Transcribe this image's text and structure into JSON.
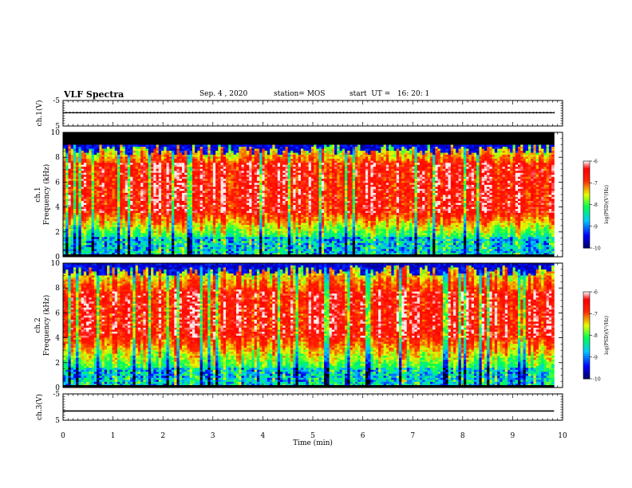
{
  "header": {
    "title": "VLF Spectra",
    "date": "Sep. 4 , 2020",
    "station": "station= MOS",
    "start": "start  UT =   16: 20: 1"
  },
  "chart_data": [
    {
      "type": "line",
      "panel": "ch1-voltage",
      "ylabel": "ch.1(V)",
      "ylim": [
        -5,
        5
      ],
      "yticks": [
        "5",
        "-5"
      ],
      "xlim": [
        0,
        10
      ],
      "series": [
        {
          "x": [
            0,
            9.83
          ],
          "y": [
            0.2,
            0.2
          ]
        }
      ],
      "color": "#000000"
    },
    {
      "type": "heatmap",
      "panel": "ch1-spectrogram",
      "ylabel": "ch.1\nFrequency (kHz)",
      "ylim": [
        0,
        10
      ],
      "yticks": [
        "0",
        "2",
        "4",
        "6",
        "8",
        "10"
      ],
      "xlim": [
        0,
        10
      ],
      "data_xmax": 9.83,
      "colorbar": {
        "label": "log(PSD)(V²/Hz)",
        "range": [
          -10,
          -6
        ],
        "ticks": [
          "-6",
          "-7",
          "-8",
          "-9",
          "-10"
        ]
      },
      "profile": {
        "black_above_khz": 9.0,
        "peak_band_khz": [
          3.5,
          7.5
        ],
        "cutoff_khz": 8.6
      }
    },
    {
      "type": "heatmap",
      "panel": "ch2-spectrogram",
      "ylabel": "ch.2\nFrequency (kHz)",
      "ylim": [
        0,
        10
      ],
      "yticks": [
        "0",
        "2",
        "4",
        "6",
        "8",
        "10"
      ],
      "xlim": [
        0,
        10
      ],
      "data_xmax": 9.83,
      "colorbar": {
        "label": "log(PSD)(V²/Hz)",
        "range": [
          -10,
          -6
        ],
        "ticks": [
          "-6",
          "-7",
          "-8",
          "-9",
          "-10"
        ]
      },
      "profile": {
        "black_above_khz": 10.0,
        "peak_band_khz": [
          4.0,
          7.8
        ],
        "cutoff_khz": 9.4
      }
    },
    {
      "type": "line",
      "panel": "ch3-voltage",
      "ylabel": "ch.3(V)",
      "ylim": [
        -5,
        5
      ],
      "yticks": [
        "5",
        "-5"
      ],
      "xlim": [
        0,
        10
      ],
      "xticks": [
        "0",
        "1",
        "2",
        "3",
        "4",
        "5",
        "6",
        "7",
        "8",
        "9",
        "10"
      ],
      "xlabel": "Time  (min)",
      "series": [
        {
          "x": [
            0,
            9.83
          ],
          "y": [
            -1.5,
            -1.5
          ]
        }
      ],
      "color": "#000000"
    }
  ],
  "colors": {
    "colormap": [
      "#ffffff",
      "#ff0000",
      "#ffff00",
      "#00ff00",
      "#00ffff",
      "#0000ff",
      "#000066"
    ],
    "axis": "#000000"
  }
}
